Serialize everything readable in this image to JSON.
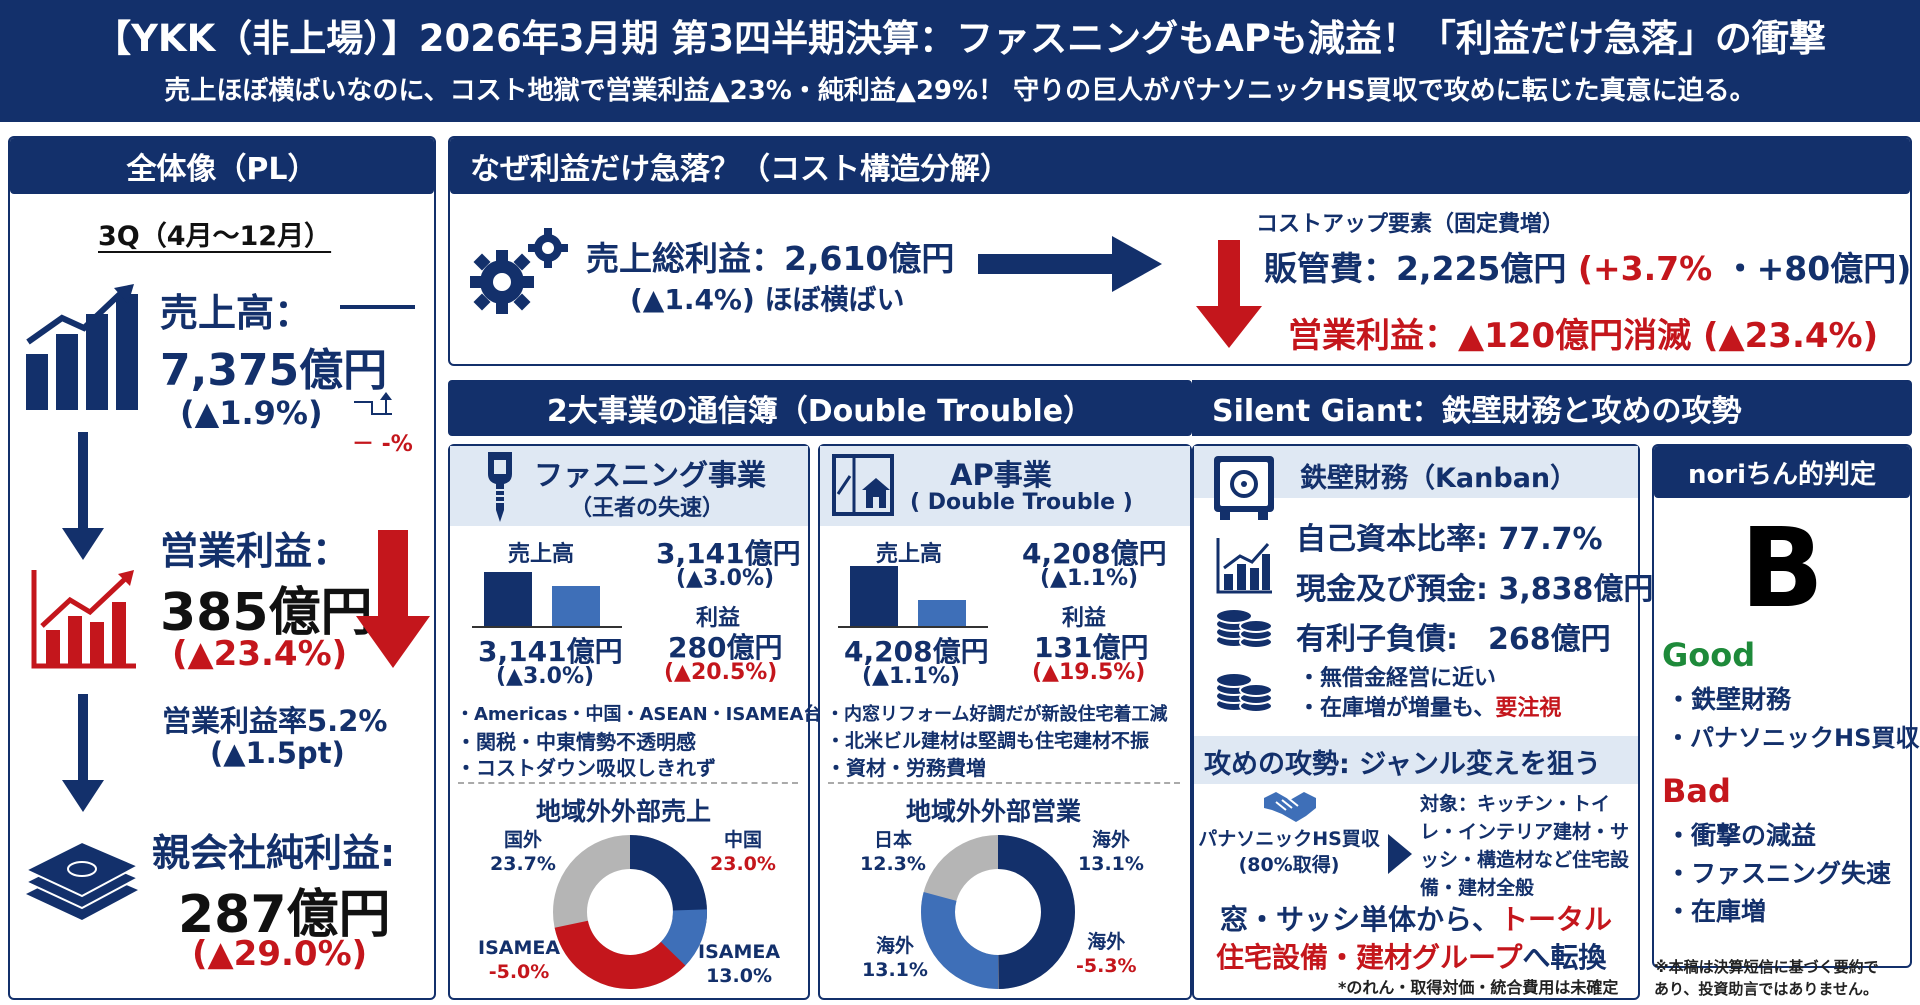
{
  "header": {
    "title": "【YKK（非上場）】2026年3月期 第3四半期決算：ファスニングもAPも減益！「利益だけ急落」の衝撃",
    "subtitle": "売上ほぼ横ばいなのに、コスト地獄で営業利益▲23%・純利益▲29%！ 守りの巨人がパナソニックHS買収で攻めに転じた真意に迫る。"
  },
  "pl": {
    "title": "全体像（PL）",
    "period": "3Q（4月～12月）",
    "sales_label": "売上高：",
    "sales_value": "7,375億円",
    "sales_change": "(▲1.9%)",
    "mini_label": "－ -%",
    "op_label": "営業利益：",
    "op_value": "385億円",
    "op_change": "(▲23.4%)",
    "margin_label": "営業利益率5.2%",
    "margin_change": "(▲1.5pt)",
    "net_label": "親会社純利益:",
    "net_value": "287億円",
    "net_change": "(▲29.0%)"
  },
  "cost": {
    "title": "なぜ利益だけ急落？（コスト構造分解）",
    "gross_label": "売上総利益：2,610億円",
    "gross_change": "(▲1.4%) ほぼ横ばい",
    "cost_up": "コストアップ要素（固定費増）",
    "sga_label": "販管費：2,225億円",
    "sga_change": "(+3.7%",
    "sga_amount": "・+80億円)",
    "op_text": "営業利益：▲120億円消滅 (▲23.4%)"
  },
  "biz": {
    "title": "2大事業の通信簿（Double Trouble）",
    "fastening": {
      "name": "ファスニング事業",
      "sub": "（王者の失速）",
      "sales_label": "売上高",
      "sales_value": "3,141億円",
      "sales_change": "(▲3.0%)",
      "bar_value": "3,141億円",
      "bar_change": "(▲3.0%)",
      "profit_label": "利益",
      "profit_value": "280億円",
      "profit_change": "(▲20.5%)",
      "bullets": [
        "・Americas・中国・ASEAN・ISAMEA台数減",
        "・関税・中東情勢不透明感",
        "・コストダウン吸収しきれず"
      ],
      "chart_title": "地域外外部売上",
      "donut_labels": [
        {
          "name": "国外",
          "value": "23.7%"
        },
        {
          "name": "中国",
          "value": "23.0%"
        },
        {
          "name": "ISAMEA",
          "value": "-5.0%"
        },
        {
          "name": "ISAMEA",
          "value": "13.0%"
        }
      ]
    },
    "ap": {
      "name": "AP事業",
      "sub": "( Double Trouble )",
      "sales_label": "売上高",
      "sales_value": "4,208億円",
      "sales_change": "(▲1.1%)",
      "bar_value": "4,208億円",
      "bar_change": "(▲1.1%)",
      "profit_label": "利益",
      "profit_value": "131億円",
      "profit_change": "(▲19.5%)",
      "bullets": [
        "・内窓リフォーム好調だが新設住宅着工減",
        "・北米ビル建材は堅調も住宅建材不振",
        "・資材・労務費増"
      ],
      "chart_title": "地域外外部営業",
      "donut_labels": [
        {
          "name": "日本",
          "value": "12.3%"
        },
        {
          "name": "海外",
          "value": "13.1%"
        },
        {
          "name": "海外",
          "value": "13.1%"
        },
        {
          "name": "海外",
          "value": "-5.3%"
        }
      ]
    }
  },
  "giant": {
    "title": "Silent Giant：鉄壁財務と攻めの攻勢",
    "fin_title": "鉄壁財務（Kanban）",
    "equity": "自己資本比率: 77.7%",
    "cash": "現金及び預金: 3,838億円",
    "debt": "有利子負債:　268億円",
    "note1": "・無借金経営に近い",
    "note2a": "・在庫増が増量も、",
    "note2b": "要注視",
    "attack_title": "攻めの攻勢: ジャンル変えを狙う",
    "deal": "パナソニックHS買収",
    "deal_sub": "(80%取得)",
    "target": "対象：キッチン・トイレ・インテリア建材・サッシ・構造材など住宅設備・建材全般",
    "shift_a": "窓・サッシ単体から、",
    "shift_b": "トータル",
    "shift_c": "住宅設備・建材グループ",
    "shift_d": "へ転換",
    "footnote": "*のれん・取得対価・統合費用は未確定"
  },
  "verdict": {
    "title": "noriちん的判定",
    "grade": "B",
    "good_label": "Good",
    "good": [
      "・鉄壁財務",
      "・パナソニックHS買収"
    ],
    "bad_label": "Bad",
    "bad": [
      "・衝撃の減益",
      "・ファスニング失速",
      "・在庫増"
    ],
    "disclaimer1": "※本稿は決算短信に基づく要約で",
    "disclaimer2": "あり、投資助言ではありません。"
  },
  "colors": {
    "navy": "#13306b",
    "red": "#c4161c",
    "light_blue": "#3e6fb8",
    "gray": "#b5b5b5",
    "green": "#1e8a3a"
  }
}
